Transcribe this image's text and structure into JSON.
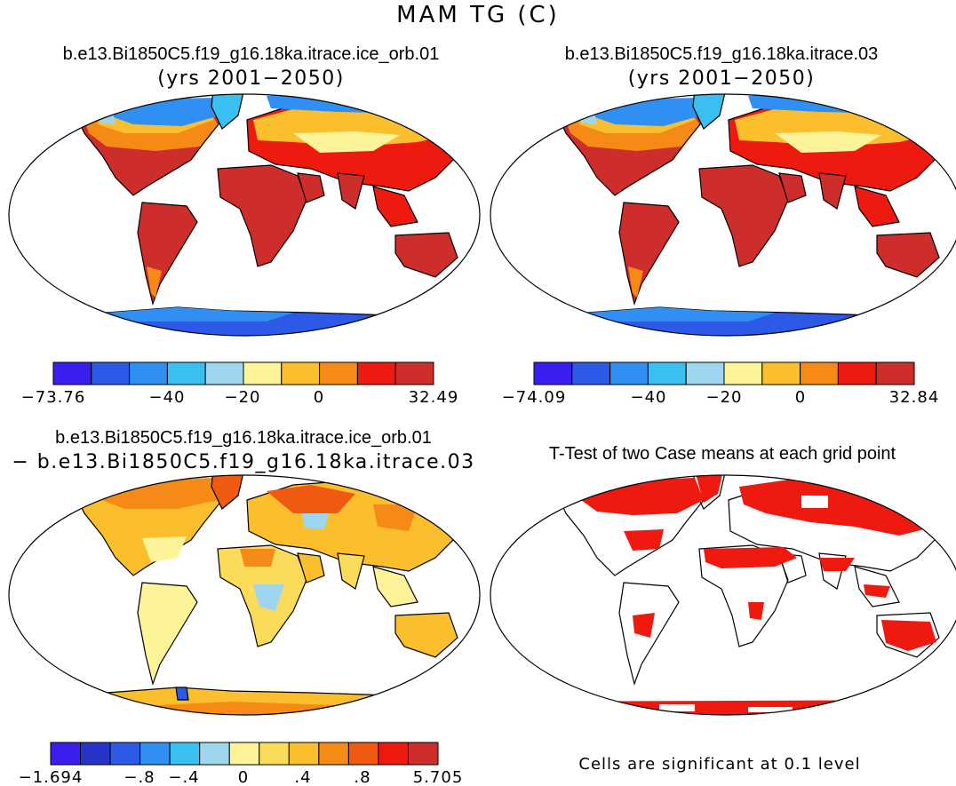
{
  "main_title": "MAM TG (C)",
  "chart_data": [
    {
      "type": "heatmap",
      "panel": "top-left",
      "title": "b.e13.Bi1850C5.f19_g16.18ka.itrace.ice_orb.01",
      "subtitle": "(yrs 2001−2050)",
      "colorbar": {
        "colors": [
          "#3a1ef0",
          "#2c5ae6",
          "#2f8ff2",
          "#39bff0",
          "#9fd6ef",
          "#fdf49a",
          "#fbbf2e",
          "#f68a17",
          "#ee1a10",
          "#cd2e2c"
        ],
        "tick_labels": [
          "−73.76",
          "−40",
          "−20",
          "0",
          "32.49"
        ],
        "min": -73.76,
        "max": 32.49
      }
    },
    {
      "type": "heatmap",
      "panel": "top-right",
      "title": "b.e13.Bi1850C5.f19_g16.18ka.itrace.03",
      "subtitle": "(yrs 2001−2050)",
      "colorbar": {
        "colors": [
          "#3a1ef0",
          "#2c5ae6",
          "#2f8ff2",
          "#39bff0",
          "#9fd6ef",
          "#fdf49a",
          "#fbbf2e",
          "#f68a17",
          "#ee1a10",
          "#cd2e2c"
        ],
        "tick_labels": [
          "−74.09",
          "−40",
          "−20",
          "0",
          "32.84"
        ],
        "min": -74.09,
        "max": 32.84
      }
    },
    {
      "type": "heatmap",
      "panel": "bottom-left",
      "title": "b.e13.Bi1850C5.f19_g16.18ka.itrace.ice_orb.01",
      "subtitle": "− b.e13.Bi1850C5.f19_g16.18ka.itrace.03",
      "colorbar": {
        "colors": [
          "#3a1ef0",
          "#2434c8",
          "#2c5ae6",
          "#2f8ff2",
          "#39bff0",
          "#9fd6ef",
          "#fdf49a",
          "#fbdc5a",
          "#fbbf2e",
          "#f68a17",
          "#f05a10",
          "#ee1a10",
          "#cd2e2c"
        ],
        "tick_labels": [
          "−1.694",
          "−.8",
          "−.4",
          "0",
          ".4",
          ".8",
          "5.705"
        ],
        "min": -1.694,
        "max": 5.705
      }
    },
    {
      "type": "heatmap",
      "panel": "bottom-right",
      "title": "T-Test of two Case means at each grid point",
      "note": "Cells are significant at 0.1 level",
      "significant_color": "#ee1a10"
    }
  ]
}
